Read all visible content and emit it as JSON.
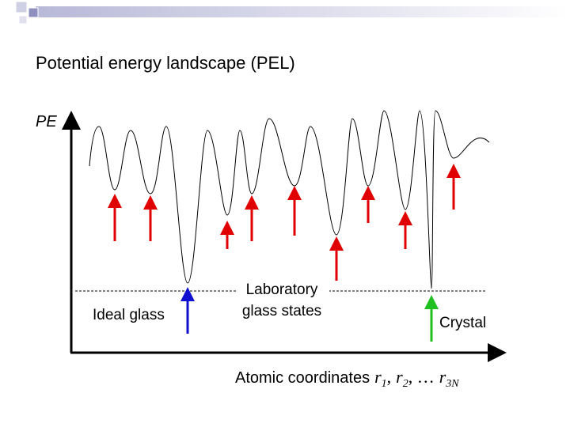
{
  "title": "Potential energy landscape (PEL)",
  "y_axis_label": "PE",
  "x_axis": {
    "label": "Atomic coordinates",
    "coordinates": [
      {
        "symbol": "r",
        "index": "1"
      },
      {
        "symbol": "r",
        "index": "2"
      },
      {
        "symbol": "r",
        "index": "3N"
      }
    ],
    "separators": [
      ",",
      ", …"
    ]
  },
  "annotations": {
    "ideal_glass": "Ideal glass",
    "laboratory": [
      "Laboratory",
      "glass states"
    ],
    "crystal": "Crystal"
  }
}
